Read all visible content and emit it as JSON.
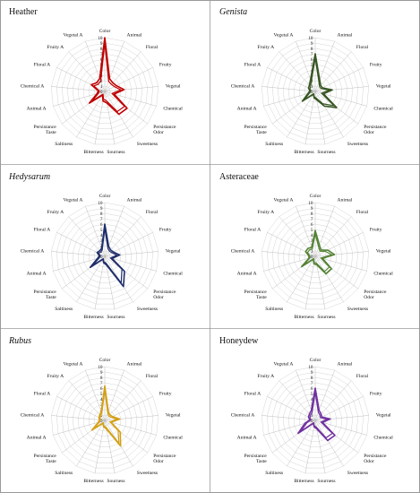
{
  "figure": {
    "axes": [
      "Color",
      "Animal",
      "Floral",
      "Fruity",
      "Vegetal",
      "Chemical",
      "Persistance Odor",
      "Sweetness",
      "Sourness",
      "Bitterness",
      "Saltiness",
      "Persistance Taste",
      "Animal A",
      "Chemical A",
      "Floral A",
      "Fruity A",
      "Vegetal A"
    ],
    "scale_ticks": [
      "0",
      "1",
      "2",
      "3",
      "4",
      "5",
      "6",
      "7",
      "8",
      "9",
      "10"
    ]
  },
  "chart_data": [
    {
      "type": "radar",
      "title": "Heather",
      "title_italic": false,
      "color": "#c00000",
      "range": [
        0,
        10
      ],
      "series": [
        {
          "values": [
            10.0,
            2.5,
            2.2,
            2.4,
            3.6,
            1.8,
            5.2,
            5.0,
            2.2,
            1.8,
            0.8,
            3.6,
            1.5,
            1.2,
            2.8,
            2.2,
            2.6
          ]
        },
        {
          "values": [
            9.0,
            2.0,
            1.8,
            2.0,
            3.0,
            1.4,
            4.6,
            4.4,
            1.8,
            1.4,
            0.6,
            3.0,
            1.2,
            1.0,
            2.3,
            1.8,
            2.1
          ]
        }
      ]
    },
    {
      "type": "radar",
      "title": "Genista",
      "title_italic": true,
      "color": "#375623",
      "range": [
        0,
        10
      ],
      "series": [
        {
          "values": [
            7.0,
            2.3,
            1.5,
            1.5,
            3.2,
            1.6,
            5.0,
            3.2,
            1.6,
            1.2,
            0.6,
            3.0,
            1.4,
            1.0,
            1.4,
            1.6,
            2.4
          ]
        },
        {
          "values": [
            6.2,
            1.9,
            1.2,
            1.2,
            2.7,
            1.2,
            4.4,
            2.7,
            1.3,
            1.0,
            0.5,
            2.5,
            1.1,
            0.8,
            1.1,
            1.3,
            2.0
          ]
        }
      ]
    },
    {
      "type": "radar",
      "title": "Hedysarum",
      "title_italic": true,
      "color": "#1f2d6b",
      "range": [
        0,
        10
      ],
      "series": [
        {
          "values": [
            6.0,
            2.0,
            1.6,
            1.8,
            2.8,
            1.4,
            4.6,
            6.6,
            1.6,
            1.2,
            0.6,
            3.4,
            1.4,
            1.0,
            1.6,
            1.4,
            1.6
          ]
        },
        {
          "values": [
            5.2,
            1.6,
            1.3,
            1.5,
            2.3,
            1.1,
            4.0,
            5.8,
            1.3,
            1.0,
            0.5,
            2.8,
            1.1,
            0.8,
            1.3,
            1.1,
            1.3
          ]
        }
      ]
    },
    {
      "type": "radar",
      "title": "Asteraceae",
      "title_italic": false,
      "color": "#548235",
      "range": [
        0,
        10
      ],
      "series": [
        {
          "values": [
            4.8,
            2.2,
            1.6,
            2.6,
            3.6,
            1.4,
            3.8,
            3.8,
            1.6,
            1.4,
            0.6,
            3.2,
            1.2,
            1.2,
            2.0,
            2.0,
            1.8
          ]
        },
        {
          "values": [
            4.2,
            1.8,
            1.3,
            2.1,
            3.1,
            1.1,
            3.3,
            3.3,
            1.3,
            1.1,
            0.5,
            2.7,
            1.0,
            1.0,
            1.6,
            1.6,
            1.5
          ]
        }
      ]
    },
    {
      "type": "radar",
      "title": "Rubus",
      "title_italic": true,
      "color": "#d4a017",
      "range": [
        0,
        10
      ],
      "series": [
        {
          "values": [
            6.4,
            1.8,
            1.4,
            1.6,
            2.8,
            1.2,
            3.6,
            5.6,
            1.6,
            1.2,
            0.6,
            3.0,
            1.2,
            1.0,
            1.2,
            1.4,
            1.8
          ]
        },
        {
          "values": [
            5.6,
            1.5,
            1.1,
            1.3,
            2.3,
            1.0,
            3.1,
            5.0,
            1.3,
            1.0,
            0.5,
            2.5,
            1.0,
            0.8,
            1.0,
            1.1,
            1.5
          ]
        }
      ]
    },
    {
      "type": "radar",
      "title": "Honeydew",
      "title_italic": false,
      "color": "#7030a0",
      "range": [
        0,
        10
      ],
      "series": [
        {
          "values": [
            6.0,
            2.0,
            1.6,
            1.4,
            2.8,
            1.4,
            4.6,
            4.4,
            1.6,
            1.2,
            0.6,
            4.0,
            2.0,
            1.0,
            1.4,
            1.6,
            2.0
          ]
        },
        {
          "values": [
            5.2,
            1.6,
            1.3,
            1.1,
            2.3,
            1.1,
            4.0,
            3.8,
            1.3,
            1.0,
            0.5,
            3.4,
            1.6,
            0.8,
            1.1,
            1.3,
            1.6
          ]
        }
      ]
    }
  ]
}
